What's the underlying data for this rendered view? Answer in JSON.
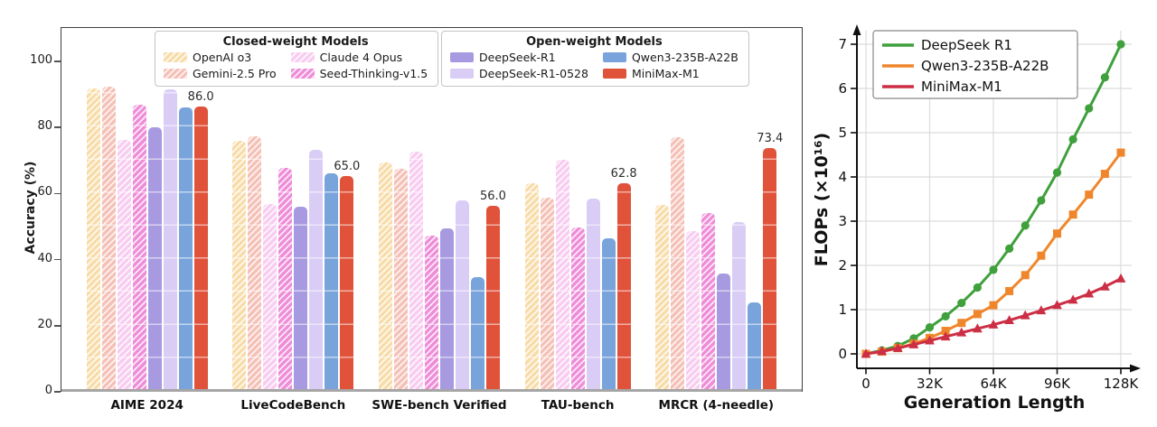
{
  "chart_data": [
    {
      "type": "bar",
      "ylabel": "Accuracy (%)",
      "yticks": [
        0,
        20,
        40,
        60,
        80,
        100
      ],
      "ylim": [
        0,
        110.4
      ],
      "grid": false,
      "categories": [
        "AIME 2024",
        "LiveCodeBench",
        "SWE-bench Verified",
        "TAU-bench",
        "MRCR (4-needle)"
      ],
      "legend_groups": [
        {
          "title": "Closed-weight Models"
        },
        {
          "title": "Open-weight Models"
        }
      ],
      "series": [
        {
          "name": "OpenAI o3",
          "color": "#F8DCA8",
          "hatch": true,
          "values": [
            91.6,
            75.8,
            69.1,
            63.0,
            56.3
          ]
        },
        {
          "name": "Gemini-2.5 Pro",
          "color": "#F5C0B6",
          "hatch": true,
          "values": [
            92.0,
            77.1,
            67.2,
            58.5,
            76.8
          ]
        },
        {
          "name": "Claude 4 Opus",
          "color": "#F8CCF0",
          "hatch": true,
          "values": [
            76.0,
            56.6,
            72.5,
            70.0,
            48.4
          ]
        },
        {
          "name": "Seed-Thinking-v1.5",
          "color": "#EE8CD8",
          "hatch": true,
          "values": [
            86.7,
            67.5,
            47.0,
            49.5,
            53.8
          ]
        },
        {
          "name": "DeepSeek-R1",
          "color": "#A89AE0",
          "hatch": false,
          "values": [
            79.8,
            55.9,
            49.2,
            null,
            35.5
          ]
        },
        {
          "name": "DeepSeek-R1-0528",
          "color": "#D9CDF6",
          "hatch": false,
          "values": [
            91.4,
            73.1,
            57.6,
            58.2,
            51.1
          ]
        },
        {
          "name": "Qwen3-235B-A22B",
          "color": "#79A4DB",
          "hatch": false,
          "values": [
            85.7,
            65.9,
            34.4,
            46.2,
            26.8
          ]
        },
        {
          "name": "MiniMax-M1",
          "color": "#E0523A",
          "hatch": false,
          "values": [
            86.0,
            65.0,
            56.0,
            62.8,
            73.4
          ],
          "show_value_labels": true
        }
      ],
      "value_labels": [
        "86.0",
        "65.0",
        "56.0",
        "62.8",
        "73.4"
      ]
    },
    {
      "type": "line",
      "xlabel": "Generation Length",
      "ylabel": "FLOPs (×10¹⁶)",
      "xticks": [
        {
          "v": 0,
          "label": "0"
        },
        {
          "v": 32,
          "label": "32K"
        },
        {
          "v": 64,
          "label": "64K"
        },
        {
          "v": 96,
          "label": "96K"
        },
        {
          "v": 128,
          "label": "128K"
        }
      ],
      "yticks": [
        0,
        1,
        2,
        3,
        4,
        5,
        6,
        7
      ],
      "grid": true,
      "legend_position": "upper left",
      "x": [
        0,
        8,
        16,
        24,
        32,
        40,
        48,
        56,
        64,
        72,
        80,
        88,
        96,
        104,
        112,
        120,
        128
      ],
      "series": [
        {
          "name": "DeepSeek R1",
          "color": "#3FA03C",
          "marker": "circle",
          "values": [
            0,
            0.08,
            0.18,
            0.35,
            0.6,
            0.85,
            1.15,
            1.5,
            1.9,
            2.38,
            2.9,
            3.47,
            4.1,
            4.85,
            5.55,
            6.25,
            7.0
          ]
        },
        {
          "name": "Qwen3-235B-A22B",
          "color": "#F0862B",
          "marker": "square",
          "values": [
            0,
            0.05,
            0.13,
            0.23,
            0.36,
            0.52,
            0.7,
            0.9,
            1.1,
            1.42,
            1.78,
            2.22,
            2.72,
            3.15,
            3.6,
            4.07,
            4.55
          ]
        },
        {
          "name": "MiniMax-M1",
          "color": "#CC2F45",
          "marker": "triangle",
          "values": [
            0,
            0.06,
            0.13,
            0.21,
            0.3,
            0.39,
            0.48,
            0.57,
            0.66,
            0.76,
            0.87,
            0.98,
            1.1,
            1.22,
            1.36,
            1.52,
            1.7
          ]
        }
      ]
    }
  ]
}
